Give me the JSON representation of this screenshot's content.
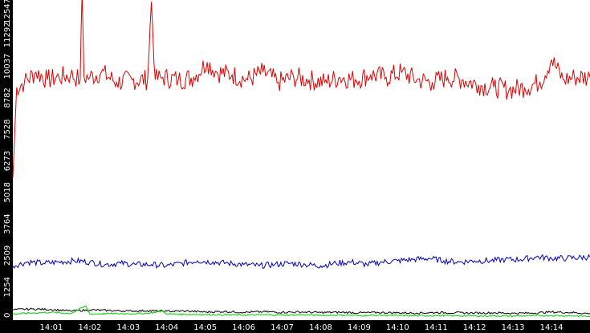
{
  "chart_data": {
    "type": "line",
    "title": "",
    "xlabel": "",
    "ylabel": "",
    "ylim": [
      0,
      12547
    ],
    "xlim_minutes": [
      0,
      15
    ],
    "y_ticks": [
      "0",
      "1254",
      "2509",
      "3764",
      "5018",
      "6273",
      "7528",
      "8782",
      "10037",
      "11292",
      "12547"
    ],
    "x_ticks": [
      "14:01",
      "14:02",
      "14:03",
      "14:04",
      "14:05",
      "14:06",
      "14:07",
      "14:08",
      "14:09",
      "14:10",
      "14:11",
      "14:12",
      "14:13",
      "14:14"
    ],
    "x_tick_minutes": [
      1,
      2,
      3,
      4,
      5,
      6,
      7,
      8,
      9,
      10,
      11,
      12,
      13,
      14
    ],
    "colors": {
      "red": "#e00000",
      "blue": "#0000c0",
      "black": "#000000",
      "green": "#00cc00"
    },
    "series": [
      {
        "color": "red",
        "points": [
          [
            0,
            5600
          ],
          [
            0.1,
            9200
          ],
          [
            0.3,
            9400
          ],
          [
            0.6,
            9800
          ],
          [
            0.9,
            9500
          ],
          [
            1.2,
            9600
          ],
          [
            1.5,
            9700
          ],
          [
            1.75,
            9500
          ],
          [
            1.8,
            13000
          ],
          [
            1.85,
            9600
          ],
          [
            2.0,
            9600
          ],
          [
            2.3,
            9800
          ],
          [
            2.7,
            9400
          ],
          [
            3.1,
            9500
          ],
          [
            3.5,
            9500
          ],
          [
            3.6,
            12600
          ],
          [
            3.7,
            9500
          ],
          [
            3.9,
            9600
          ],
          [
            4.3,
            9500
          ],
          [
            4.7,
            9600
          ],
          [
            5.05,
            10200
          ],
          [
            5.3,
            9800
          ],
          [
            5.7,
            9700
          ],
          [
            6.1,
            9500
          ],
          [
            6.5,
            9800
          ],
          [
            6.9,
            9400
          ],
          [
            7.3,
            9600
          ],
          [
            7.7,
            9500
          ],
          [
            8.1,
            9400
          ],
          [
            8.5,
            9600
          ],
          [
            8.9,
            9500
          ],
          [
            9.3,
            9700
          ],
          [
            9.7,
            9600
          ],
          [
            10.1,
            9800
          ],
          [
            10.5,
            9500
          ],
          [
            10.9,
            9400
          ],
          [
            11.3,
            9600
          ],
          [
            11.7,
            9500
          ],
          [
            12.1,
            9300
          ],
          [
            12.5,
            9200
          ],
          [
            12.9,
            9100
          ],
          [
            13.3,
            9200
          ],
          [
            13.7,
            9400
          ],
          [
            14.0,
            10300
          ],
          [
            14.3,
            9500
          ],
          [
            14.6,
            9600
          ],
          [
            15.0,
            9600
          ]
        ]
      },
      {
        "color": "blue",
        "points": [
          [
            0,
            2100
          ],
          [
            0.4,
            2250
          ],
          [
            0.8,
            2200
          ],
          [
            1.2,
            2250
          ],
          [
            1.6,
            2300
          ],
          [
            2.0,
            2250
          ],
          [
            2.4,
            2150
          ],
          [
            2.8,
            2200
          ],
          [
            3.2,
            2150
          ],
          [
            3.6,
            2150
          ],
          [
            4.0,
            2100
          ],
          [
            4.4,
            2200
          ],
          [
            4.8,
            2300
          ],
          [
            5.2,
            2250
          ],
          [
            5.6,
            2200
          ],
          [
            6.0,
            2150
          ],
          [
            6.4,
            2100
          ],
          [
            6.8,
            2150
          ],
          [
            7.2,
            2200
          ],
          [
            7.6,
            2150
          ],
          [
            8.0,
            2100
          ],
          [
            8.4,
            2200
          ],
          [
            8.8,
            2250
          ],
          [
            9.2,
            2150
          ],
          [
            9.6,
            2250
          ],
          [
            10.0,
            2300
          ],
          [
            10.4,
            2350
          ],
          [
            10.8,
            2400
          ],
          [
            11.2,
            2300
          ],
          [
            11.6,
            2250
          ],
          [
            12.0,
            2300
          ],
          [
            12.4,
            2300
          ],
          [
            12.8,
            2350
          ],
          [
            13.2,
            2350
          ],
          [
            13.6,
            2450
          ],
          [
            14.0,
            2400
          ],
          [
            14.4,
            2400
          ],
          [
            15.0,
            2450
          ]
        ]
      },
      {
        "color": "black",
        "points": [
          [
            0,
            350
          ],
          [
            0.5,
            380
          ],
          [
            1.0,
            360
          ],
          [
            1.5,
            300
          ],
          [
            2.0,
            340
          ],
          [
            2.5,
            320
          ],
          [
            3.0,
            300
          ],
          [
            3.5,
            310
          ],
          [
            4.0,
            290
          ],
          [
            4.5,
            300
          ],
          [
            5.0,
            260
          ],
          [
            5.5,
            280
          ],
          [
            6.0,
            250
          ],
          [
            6.5,
            270
          ],
          [
            7.0,
            250
          ],
          [
            7.5,
            260
          ],
          [
            8.0,
            240
          ],
          [
            8.5,
            250
          ],
          [
            9.0,
            230
          ],
          [
            9.5,
            240
          ],
          [
            10.0,
            230
          ],
          [
            10.5,
            220
          ],
          [
            11.0,
            240
          ],
          [
            11.5,
            230
          ],
          [
            12.0,
            220
          ],
          [
            12.5,
            230
          ],
          [
            13.0,
            210
          ],
          [
            13.5,
            220
          ],
          [
            14.0,
            260
          ],
          [
            14.5,
            240
          ],
          [
            15.0,
            200
          ]
        ]
      },
      {
        "color": "green",
        "points": [
          [
            0,
            180
          ],
          [
            0.5,
            220
          ],
          [
            1.0,
            250
          ],
          [
            1.5,
            200
          ],
          [
            1.9,
            500
          ],
          [
            2.0,
            180
          ],
          [
            2.5,
            200
          ],
          [
            3.0,
            190
          ],
          [
            3.5,
            210
          ],
          [
            3.9,
            300
          ],
          [
            4.0,
            180
          ],
          [
            4.5,
            170
          ],
          [
            5.0,
            160
          ],
          [
            5.5,
            150
          ],
          [
            6.0,
            140
          ],
          [
            6.5,
            150
          ],
          [
            7.0,
            140
          ],
          [
            7.5,
            150
          ],
          [
            8.0,
            130
          ],
          [
            8.5,
            140
          ],
          [
            9.0,
            120
          ],
          [
            9.5,
            130
          ],
          [
            10.0,
            120
          ],
          [
            10.5,
            110
          ],
          [
            11.0,
            120
          ],
          [
            11.5,
            110
          ],
          [
            12.0,
            100
          ],
          [
            12.5,
            110
          ],
          [
            13.0,
            100
          ],
          [
            13.5,
            110
          ],
          [
            14.0,
            120
          ],
          [
            14.5,
            110
          ],
          [
            15.0,
            90
          ]
        ]
      }
    ]
  }
}
